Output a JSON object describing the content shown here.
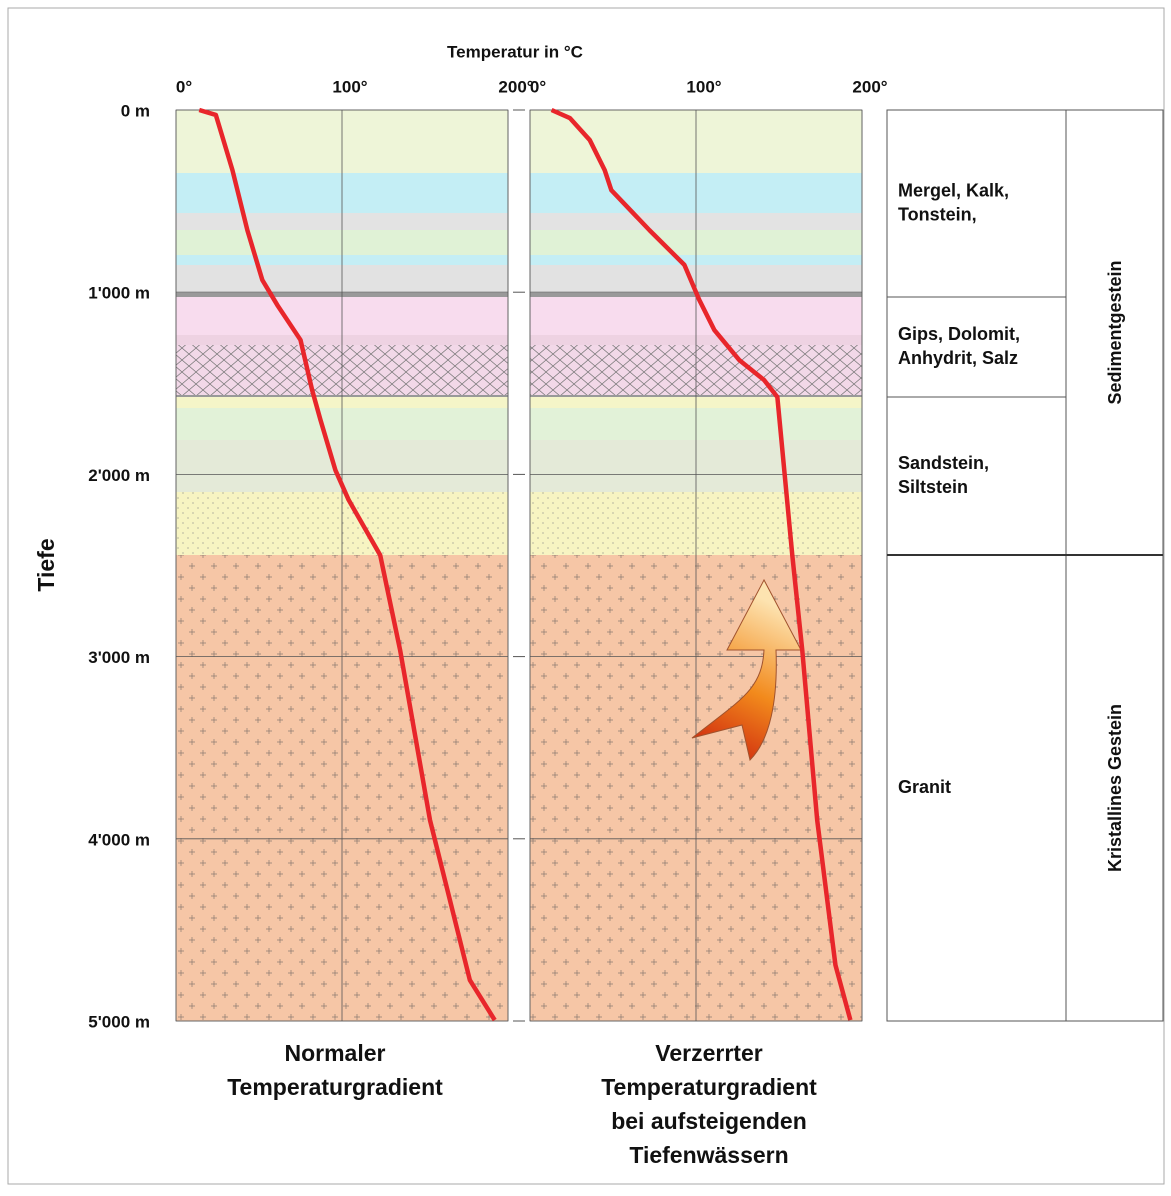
{
  "chart_data": [
    {
      "type": "line",
      "x_label": "Temperatur in °C",
      "y_label": "Tiefe",
      "caption": [
        "Normaler",
        "Temperaturgradient"
      ],
      "color": "#e8262b",
      "x": [
        14,
        24,
        34,
        43,
        52,
        61,
        75,
        82,
        87,
        96,
        104,
        123,
        135,
        153,
        177,
        192
      ],
      "values": [
        0,
        27,
        330,
        660,
        933,
        1070,
        1262,
        1537,
        1700,
        1976,
        2140,
        2443,
        2964,
        3897,
        4775,
        4995
      ],
      "xlim": [
        0,
        200
      ],
      "ylim": [
        0,
        5000
      ],
      "xticks": [
        {
          "value": 0,
          "label": "0°"
        },
        {
          "value": 100,
          "label": "100°"
        },
        {
          "value": 200,
          "label": "200°"
        }
      ],
      "yticks": [
        {
          "value": 0,
          "label": "0 m"
        },
        {
          "value": 1000,
          "label": "1'000 m"
        },
        {
          "value": 2000,
          "label": "2'000 m"
        },
        {
          "value": 3000,
          "label": "3'000 m"
        },
        {
          "value": 4000,
          "label": "4'000 m"
        },
        {
          "value": 5000,
          "label": "5'000 m"
        }
      ]
    },
    {
      "type": "line",
      "caption": [
        "Verzerrter",
        "Temperaturgradient",
        "bei aufsteigenden",
        "Tiefenwässern"
      ],
      "color": "#e8262b",
      "x": [
        13,
        24,
        36,
        45,
        49,
        72,
        93,
        102,
        111,
        126,
        141,
        149,
        158,
        164,
        173,
        184,
        193
      ],
      "values": [
        0,
        44,
        165,
        330,
        440,
        660,
        850,
        1043,
        1207,
        1372,
        1482,
        1575,
        2443,
        2964,
        3897,
        4693,
        4995
      ],
      "xlim": [
        0,
        200
      ],
      "ylim": [
        0,
        5000
      ],
      "xticks": [
        {
          "value": 0,
          "label": "0°"
        },
        {
          "value": 100,
          "label": "100°"
        },
        {
          "value": 200,
          "label": "200°"
        }
      ]
    }
  ],
  "stratigraphy": {
    "rocks": [
      [
        "Mergel, Kalk,",
        "Tonstein,"
      ],
      [
        "Gips, Dolomit,",
        "Anhydrit, Salz"
      ],
      [
        "Sandstein,",
        "Siltstein"
      ],
      [
        "Granit"
      ]
    ],
    "groups": [
      "Sedimentgestein",
      "Kristallines Gestein"
    ]
  }
}
